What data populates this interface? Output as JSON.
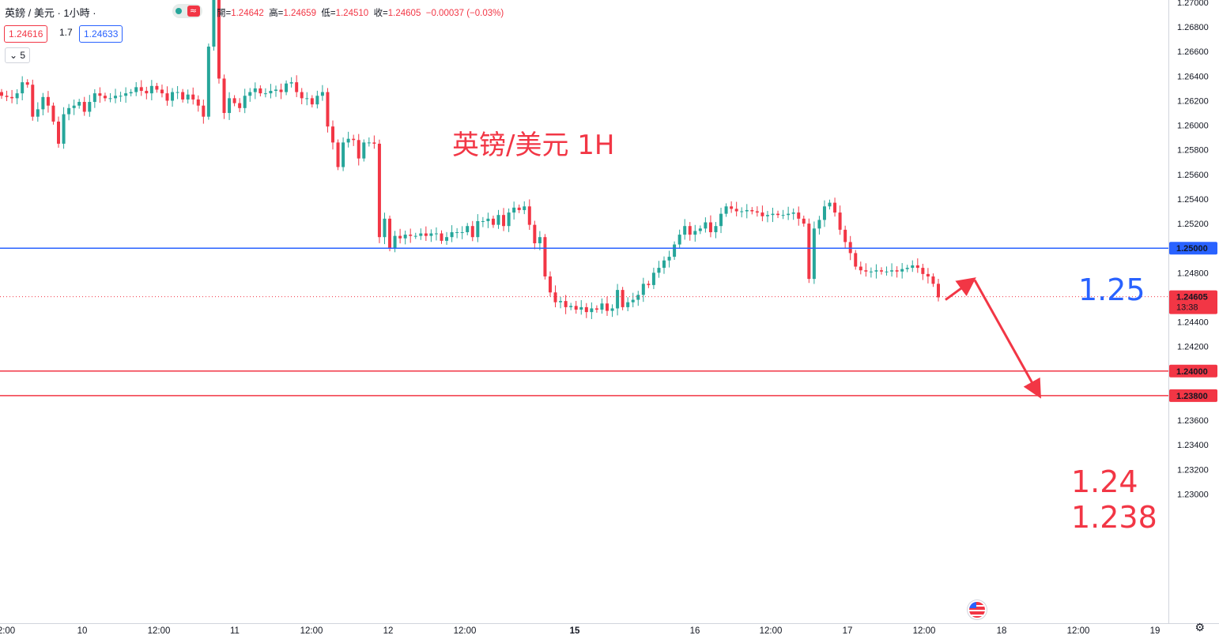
{
  "header": {
    "symbol": "英鎊 / 美元 · 1小時 ·",
    "ohlc": {
      "open_label": "開=",
      "open": "1.24642",
      "high_label": "高=",
      "high": "1.24659",
      "low_label": "低=",
      "low": "1.24510",
      "close_label": "收=",
      "close": "1.24605",
      "change": "−0.00037 (−0.03%)"
    },
    "bid": "1.24616",
    "spread": "1.7",
    "ask": "1.24633",
    "indicator": "5",
    "indicator_icon": "chevron-down-icon",
    "wave_icon": "≈"
  },
  "annotations": {
    "title": "英镑/美元 1H",
    "level_high": "1.25",
    "level_mid": "1.24",
    "level_low": "1.238"
  },
  "colors": {
    "up": "#26a69a",
    "down": "#f23645",
    "blue_line": "#2962ff",
    "red_line": "#f23645",
    "annotation_red": "#f23645",
    "annotation_blue": "#2962ff"
  },
  "chart_data": {
    "type": "candlestick",
    "title": "英镑/美元 1H",
    "ylim": [
      1.22,
      1.27
    ],
    "y_ticks": [
      "1.27000",
      "1.26800",
      "1.26600",
      "1.26400",
      "1.26200",
      "1.26000",
      "1.25800",
      "1.25600",
      "1.25400",
      "1.25200",
      "1.25000",
      "1.24800",
      "1.24600",
      "1.24400",
      "1.24200",
      "1.24000",
      "1.23800",
      "1.23600",
      "1.23400",
      "1.23200",
      "1.23000"
    ],
    "x_ticks": [
      "2:00",
      "10",
      "12:00",
      "11",
      "12:00",
      "12",
      "12:00",
      "15",
      "16",
      "12:00",
      "17",
      "12:00",
      "18",
      "12:00",
      "19"
    ],
    "horizontal_lines": [
      {
        "price": 1.25,
        "label": "1.25000",
        "color": "#2962ff"
      },
      {
        "price": 1.24,
        "label": "1.24000",
        "color": "#f23645"
      },
      {
        "price": 1.238,
        "label": "1.23800",
        "color": "#f23645"
      }
    ],
    "last_price": {
      "price": 1.24605,
      "label": "1.24605",
      "countdown": "13:38"
    },
    "projection": [
      [
        1.2458,
        1.2474
      ],
      [
        1.2474,
        1.2381
      ]
    ],
    "closes": [
      1.2624,
      1.2623,
      1.2622,
      1.2626,
      1.2635,
      1.2633,
      1.2607,
      1.2613,
      1.2623,
      1.2616,
      1.2603,
      1.2585,
      1.2609,
      1.2614,
      1.2616,
      1.2619,
      1.2611,
      1.2619,
      1.2626,
      1.2624,
      1.2622,
      1.2622,
      1.2624,
      1.2624,
      1.2626,
      1.2627,
      1.2631,
      1.2628,
      1.2626,
      1.2632,
      1.2629,
      1.2626,
      1.262,
      1.2627,
      1.2627,
      1.2621,
      1.2625,
      1.2621,
      1.2616,
      1.2607,
      1.2664,
      1.2703,
      1.2638,
      1.261,
      1.2622,
      1.2618,
      1.2614,
      1.2624,
      1.2627,
      1.263,
      1.2626,
      1.2626,
      1.2628,
      1.2629,
      1.2627,
      1.2634,
      1.2635,
      1.2627,
      1.2622,
      1.2622,
      1.2617,
      1.2624,
      1.2627,
      1.2599,
      1.2586,
      1.2566,
      1.2586,
      1.2589,
      1.2588,
      1.2573,
      1.2586,
      1.2586,
      1.2585,
      1.2509,
      1.2524,
      1.25,
      1.251,
      1.2508,
      1.2511,
      1.251,
      1.251,
      1.2512,
      1.251,
      1.2512,
      1.2512,
      1.2506,
      1.2509,
      1.2513,
      1.2513,
      1.2513,
      1.2518,
      1.2509,
      1.2522,
      1.2522,
      1.2524,
      1.2519,
      1.2527,
      1.2518,
      1.2529,
      1.2533,
      1.2531,
      1.2534,
      1.2519,
      1.2504,
      1.2509,
      1.2477,
      1.2464,
      1.2456,
      1.2457,
      1.2452,
      1.2453,
      1.245,
      1.2452,
      1.2448,
      1.2451,
      1.245,
      1.2455,
      1.2449,
      1.2451,
      1.2466,
      1.2452,
      1.2456,
      1.2458,
      1.2462,
      1.2471,
      1.247,
      1.248,
      1.2484,
      1.249,
      1.2493,
      1.2503,
      1.2511,
      1.2518,
      1.2511,
      1.2514,
      1.2516,
      1.2521,
      1.2513,
      1.2518,
      1.2528,
      1.2534,
      1.2532,
      1.253,
      1.253,
      1.2531,
      1.253,
      1.2529,
      1.2526,
      1.2527,
      1.2528,
      1.2527,
      1.2527,
      1.2528,
      1.2529,
      1.2524,
      1.252,
      1.2475,
      1.2516,
      1.2523,
      1.2534,
      1.2537,
      1.2529,
      1.2515,
      1.2505,
      1.2496,
      1.2485,
      1.2482,
      1.2481,
      1.2481,
      1.2482,
      1.2481,
      1.2481,
      1.2482,
      1.2481,
      1.2483,
      1.2484,
      1.2486,
      1.2484,
      1.2479,
      1.2477,
      1.2471,
      1.246
    ]
  }
}
